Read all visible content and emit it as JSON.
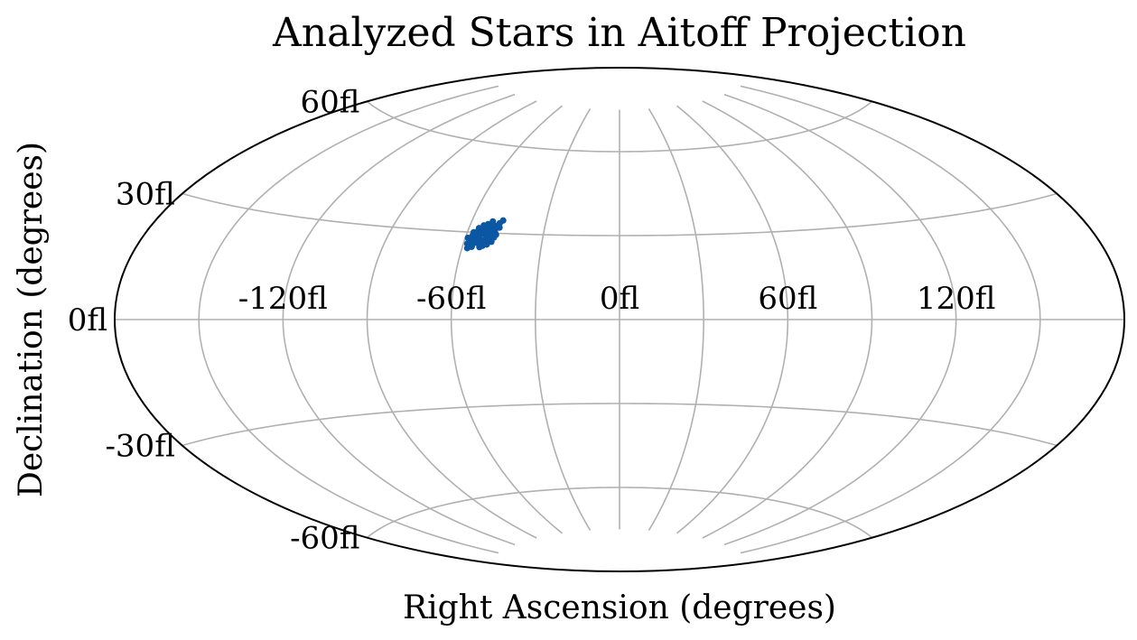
{
  "chart_data": {
    "type": "scatter",
    "projection": "aitoff",
    "title": "Analyzed Stars in Aitoff Projection",
    "xlabel": "Right Ascension (degrees)",
    "ylabel": "Declination (degrees)",
    "xlim": [
      -180,
      180
    ],
    "ylim": [
      -90,
      90
    ],
    "grid": true,
    "x_ticks": [
      -120,
      -60,
      0,
      60,
      120
    ],
    "x_tick_labels": [
      "-120fl",
      "-60fl",
      "0fl",
      "60fl",
      "120fl"
    ],
    "y_ticks": [
      -60,
      -30,
      0,
      30,
      60
    ],
    "y_tick_labels": [
      "-60fl",
      "-30fl",
      "0fl",
      "30fl",
      "60fl"
    ],
    "colors": {
      "points": "#0b57a4",
      "grid": "#b0b0b0",
      "frame": "#000000"
    },
    "series": [
      {
        "x": [
          -59,
          -57.5,
          -56,
          -54.5,
          -53,
          -51.5,
          -50,
          -48.5,
          -47.5,
          -58.5,
          -57,
          -55.5,
          -54,
          -52.5,
          -51,
          -49.5,
          -48,
          -56.5,
          -55,
          -53.5,
          -52,
          -50.5,
          -49,
          -53,
          -51.5,
          -56,
          -54.5,
          -57.5,
          -55,
          -52,
          -50,
          -58,
          -56.5,
          -53.5,
          -51,
          -49.5,
          -48.5,
          -54,
          -52.5,
          -55.5,
          -57,
          -53,
          -50.5,
          -51.5,
          -49,
          -56,
          -54.5,
          -52
        ],
        "y": [
          28,
          29,
          30.5,
          31.5,
          31,
          32,
          32.5,
          33.5,
          34.5,
          26,
          27.5,
          29,
          30,
          29.5,
          30.5,
          31,
          32,
          25,
          26.5,
          27.5,
          28.5,
          29,
          30,
          33,
          34,
          31.5,
          32.5,
          30,
          28,
          27,
          28,
          24.5,
          25.5,
          25,
          26,
          27,
          29.5,
          26,
          25.5,
          28.5,
          27,
          30,
          31,
          27.5,
          28.5,
          30,
          29.5,
          32
        ]
      }
    ]
  }
}
